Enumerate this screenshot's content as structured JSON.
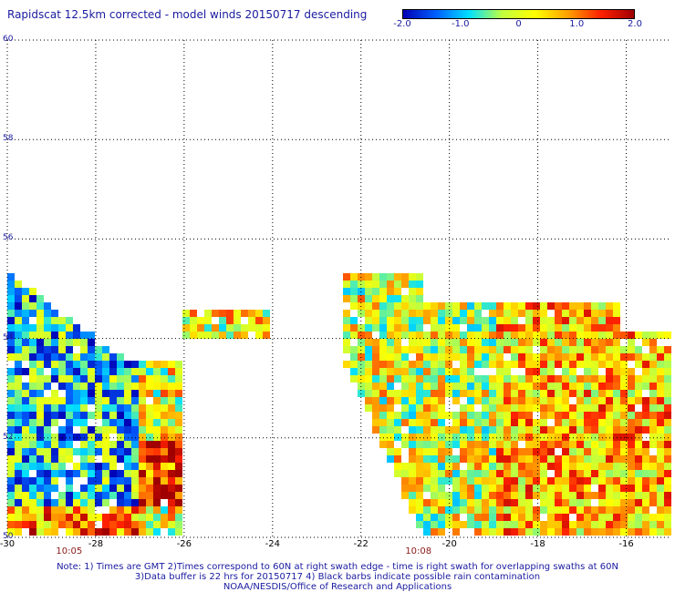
{
  "title": "Rapidscat 12.5km corrected - model winds 20150717 descending",
  "colorbar": {
    "labels": [
      "-2.0",
      "-1.0",
      "0",
      "1.0",
      "2.0"
    ],
    "values": [
      -2.0,
      -1.0,
      0,
      1.0,
      2.0
    ],
    "range": [
      -2.0,
      2.0
    ],
    "colors": [
      "#0000b4",
      "#0060ff",
      "#00e0ff",
      "#c0ff40",
      "#ffff00",
      "#ffa000",
      "#ff2000",
      "#a00000"
    ]
  },
  "map": {
    "lon_range": [
      -30,
      -15
    ],
    "lat_range": [
      50,
      60
    ],
    "lon_ticks": [
      -30,
      -28,
      -26,
      -24,
      -22,
      -20,
      -18,
      -16
    ],
    "lon_labels": [
      "-30",
      "-28",
      "-26",
      "-24",
      "-22",
      "-20",
      "-18",
      "-16"
    ],
    "lat_ticks": [
      50,
      52,
      54,
      56,
      58,
      60
    ],
    "lat_labels": [
      "50",
      "52",
      "54",
      "56",
      "58",
      "60"
    ],
    "grid": true,
    "swaths": [
      {
        "time": "10:05",
        "time_lon": -28.6
      },
      {
        "time": "10:08",
        "time_lon": -20.7
      }
    ]
  },
  "notes": [
    "Note: 1) Times are GMT 2)Times correspond to 60N at right swath edge - time is right swath for overlapping swaths at 60N",
    "3)Data buffer is 22 hrs for 20150717 4) Black barbs indicate possible rain contamination",
    "NOAA/NESDIS/Office of Research and Applications"
  ]
}
